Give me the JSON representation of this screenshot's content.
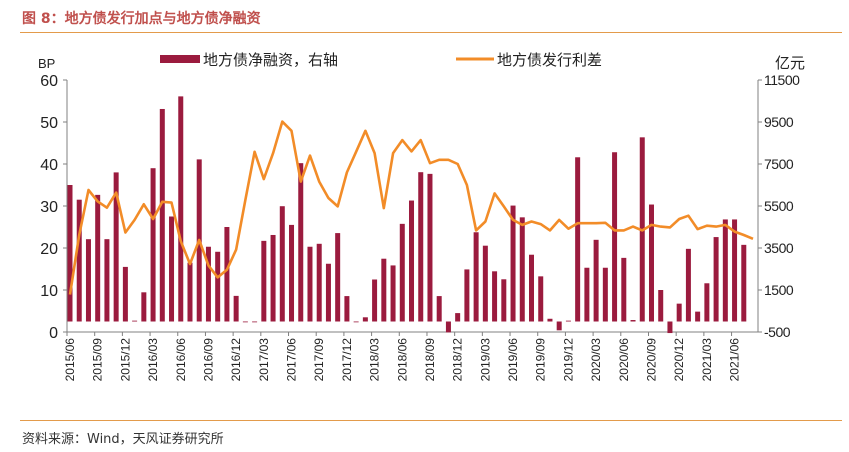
{
  "title": "图 8：地方债发行加点与地方债净融资",
  "source": "资料来源：Wind，天风证券研究所",
  "chart_data": {
    "type": "bar+line",
    "left_axis": {
      "unit": "BP",
      "ylim": [
        0,
        60
      ],
      "ticks": [
        0,
        10,
        20,
        30,
        40,
        50,
        60
      ]
    },
    "right_axis": {
      "unit": "亿元",
      "ylim": [
        -500,
        11500
      ],
      "ticks": [
        -500,
        1500,
        3500,
        5500,
        7500,
        9500,
        11500
      ]
    },
    "x_tick_labels": [
      "2015/06",
      "2015/09",
      "2015/12",
      "2016/03",
      "2016/06",
      "2016/09",
      "2016/12",
      "2017/03",
      "2017/06",
      "2017/09",
      "2017/12",
      "2018/03",
      "2018/06",
      "2018/09",
      "2018/12",
      "2019/03",
      "2019/06",
      "2019/09",
      "2019/12",
      "2020/03",
      "2020/06",
      "2020/09",
      "2020/12",
      "2021/03",
      "2021/06"
    ],
    "legend": "top",
    "series": [
      {
        "name": "地方债净融资，右轴",
        "type": "bar",
        "axis": "right",
        "color": "#9b1b3e",
        "values": [
          6500,
          5800,
          3920,
          6030,
          3920,
          7100,
          2600,
          40,
          1390,
          7300,
          10120,
          5000,
          10720,
          2800,
          7720,
          3560,
          3320,
          4500,
          1220,
          0,
          0,
          3840,
          4120,
          5490,
          4600,
          7540,
          3560,
          3700,
          2750,
          4210,
          1210,
          0,
          200,
          2000,
          2990,
          2670,
          4650,
          5760,
          7110,
          7030,
          1210,
          -520,
          400,
          2480,
          4250,
          3610,
          2390,
          2010,
          5520,
          4960,
          3180,
          2150,
          130,
          -420,
          40,
          7820,
          2560,
          3890,
          2560,
          8060,
          3030,
          70,
          8770,
          5570,
          1500,
          -550,
          850,
          3460,
          470,
          1820,
          4020,
          4860,
          4860,
          3650,
          null
        ]
      },
      {
        "name": "地方债发行利差",
        "type": "line",
        "axis": "left",
        "color": "#f28c28",
        "values": [
          8.9,
          23.1,
          33.8,
          31.1,
          29.6,
          33.2,
          23.7,
          26.7,
          30.4,
          26.9,
          31,
          30.8,
          21.6,
          16.2,
          21.9,
          15.8,
          13,
          14.8,
          19.6,
          31.5,
          42.9,
          36.4,
          42.6,
          50.1,
          47.9,
          35.8,
          42,
          35.8,
          31.9,
          29.9,
          38,
          42.9,
          47.9,
          42.6,
          29.5,
          42.6,
          45.7,
          43,
          45.7,
          40.2,
          41,
          41,
          40,
          35,
          24.2,
          26.3,
          33,
          29.9,
          26.7,
          25.5,
          26.3,
          25.7,
          24.2,
          26.7,
          24.6,
          25.9,
          25.9,
          25.9,
          26,
          24.2,
          24.2,
          25.1,
          24.2,
          25.5,
          25.1,
          24.9,
          26.9,
          27.7,
          24.5,
          25.3,
          25.1,
          25.5,
          23.9,
          23.1,
          22.2
        ]
      }
    ]
  }
}
